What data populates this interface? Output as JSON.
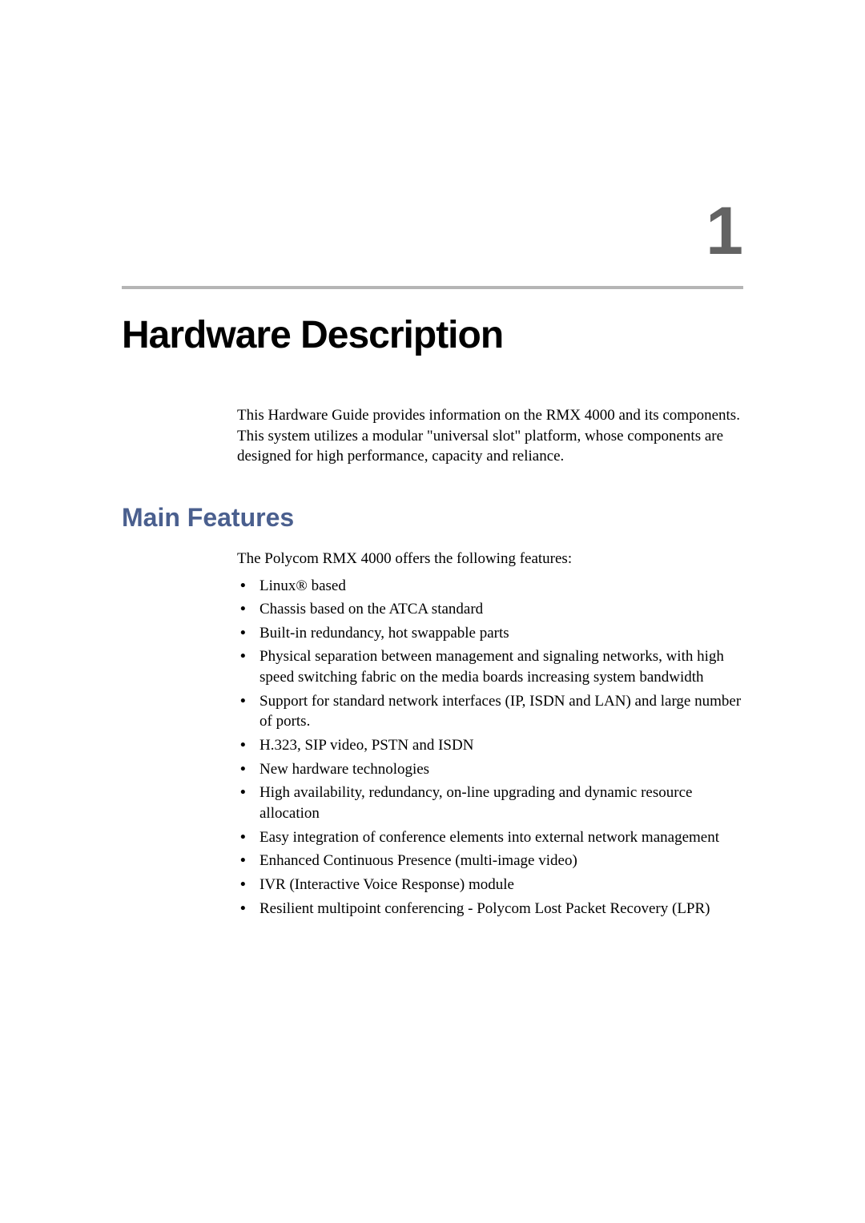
{
  "chapter": {
    "number": "1",
    "title": "Hardware Description",
    "intro": "This Hardware Guide provides information on the RMX 4000 and its components. This system utilizes a modular \"universal slot\" platform, whose components are designed for high performance, capacity and reliance."
  },
  "section": {
    "heading": "Main Features",
    "intro": "The Polycom RMX 4000 offers the following features:",
    "features": [
      "Linux® based",
      "Chassis based on the ATCA standard",
      "Built-in redundancy, hot swappable parts",
      "Physical separation between management and signaling networks, with high speed switching fabric on the media boards increasing system bandwidth",
      "Support for standard network interfaces (IP, ISDN and LAN) and large number of ports.",
      "H.323, SIP video, PSTN and ISDN",
      "New hardware technologies",
      "High availability, redundancy, on-line upgrading and dynamic resource allocation",
      "Easy integration of conference elements into external network management",
      "Enhanced Continuous Presence (multi-image video)",
      "IVR (Interactive Voice Response) module",
      "Resilient multipoint conferencing - Polycom Lost Packet Recovery (LPR)"
    ]
  },
  "colors": {
    "section_heading": "#4a5f8e",
    "chapter_number": "#636363",
    "divider": "#b5b5b5",
    "text": "#000000",
    "background": "#ffffff"
  },
  "typography": {
    "chapter_number_fontsize": 84,
    "chapter_title_fontsize": 48,
    "section_heading_fontsize": 32,
    "body_fontsize": 19
  }
}
